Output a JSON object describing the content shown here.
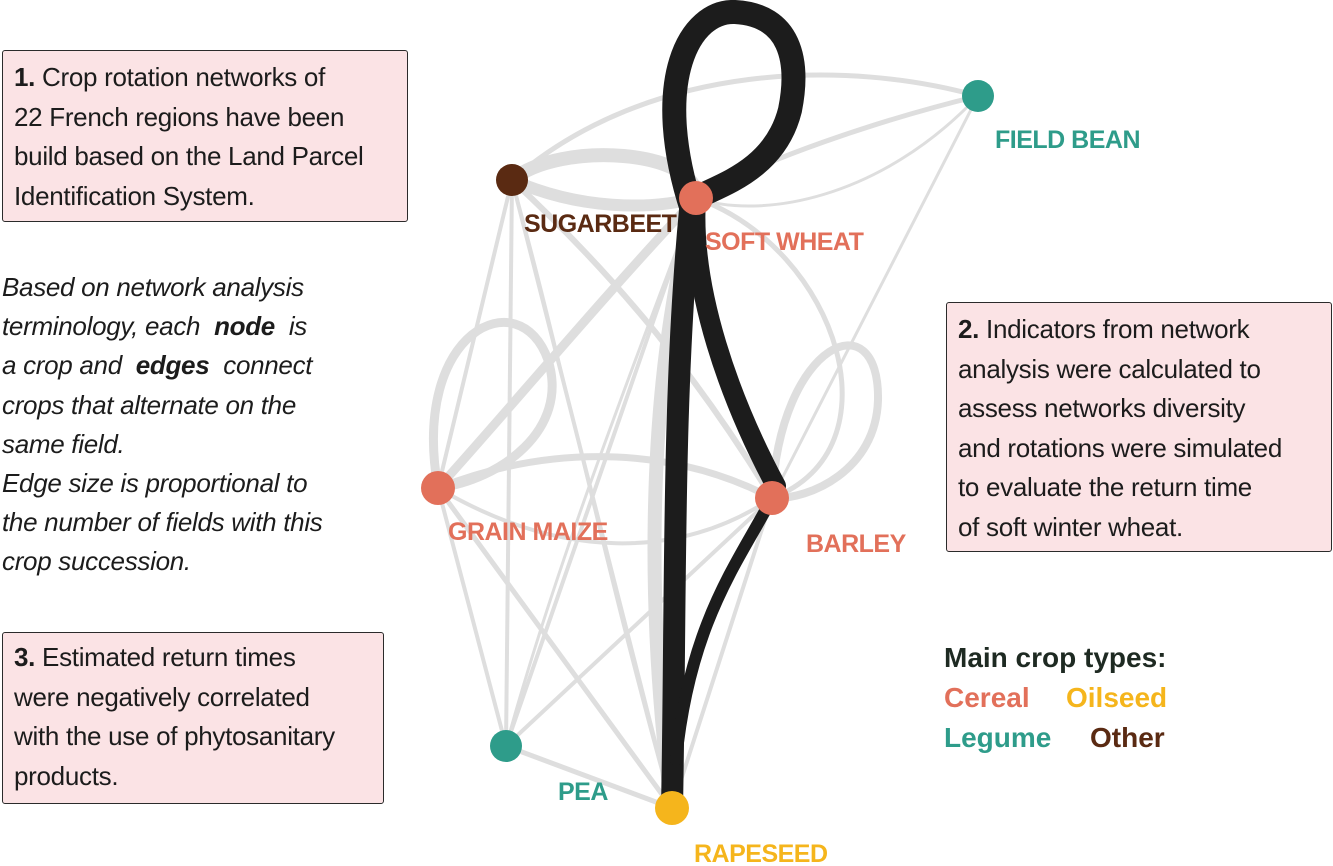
{
  "colors": {
    "cereal": "#e2705a",
    "oilseed": "#f5b51c",
    "legume": "#2e9c8a",
    "other": "#5a2a12",
    "strong_edge": "#1c1c1c",
    "weak_edge": "#dcdcdc",
    "box_fill": "#fbe3e5"
  },
  "box1": {
    "number": "1.",
    "lines": [
      "Crop rotation networks of",
      "22 French regions have been",
      "build based on the Land Parcel",
      "Identification System."
    ]
  },
  "intro": {
    "line1": "Based on network analysis",
    "line2": "terminology, each",
    "node_word": "node",
    "line2_end": "is",
    "line3_start": "a crop and",
    "edges_word": "edges",
    "line3_end": "connect",
    "line4": "crops that alternate on the",
    "line5": "same field.",
    "line6": "Edge size is proportional to",
    "line7": "the number of fields with this",
    "line8": "crop succession."
  },
  "box2": {
    "number": "2.",
    "lines": [
      "Indicators from network",
      "analysis were calculated to",
      "assess networks diversity",
      "and rotations were simulated",
      "to evaluate the return time",
      "of soft winter wheat."
    ]
  },
  "box3": {
    "number": "3.",
    "lines": [
      "Estimated return times",
      "were negatively correlated",
      "with the use of phytosanitary",
      "products."
    ]
  },
  "network": {
    "nodes": [
      {
        "id": "sugarbeet",
        "label": "SUGARBEET",
        "type": "other"
      },
      {
        "id": "soft_wheat",
        "label": "SOFT WHEAT",
        "type": "cereal"
      },
      {
        "id": "field_bean",
        "label": "FIELD BEAN",
        "type": "legume"
      },
      {
        "id": "grain_maize",
        "label": "GRAIN MAIZE",
        "type": "cereal"
      },
      {
        "id": "barley",
        "label": "BARLEY",
        "type": "cereal"
      },
      {
        "id": "pea",
        "label": "PEA",
        "type": "legume"
      },
      {
        "id": "rapeseed",
        "label": "RAPESEED",
        "type": "oilseed"
      }
    ]
  },
  "legend": {
    "title": "Main crop types:",
    "cereal": "Cereal",
    "oilseed": "Oilseed",
    "legume": "Legume",
    "other": "Other"
  }
}
